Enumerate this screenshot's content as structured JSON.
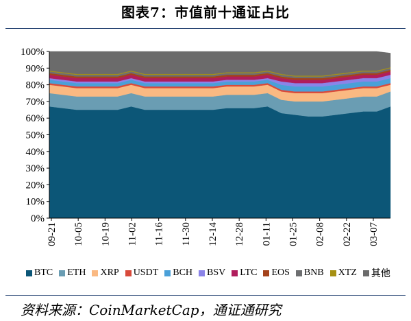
{
  "title": "图表7：市值前十通证占比",
  "source": "资料来源：CoinMarketCap，通证通研究",
  "chart_data": {
    "type": "area",
    "stacked": true,
    "title": "",
    "xlabel": "",
    "ylabel": "",
    "ylim": [
      0,
      100
    ],
    "y_ticks": [
      "0%",
      "10%",
      "20%",
      "30%",
      "40%",
      "50%",
      "60%",
      "70%",
      "80%",
      "90%",
      "100%"
    ],
    "x_tick_labels": [
      "09-21",
      "10-05",
      "10-19",
      "11-02",
      "11-16",
      "11-30",
      "12-14",
      "12-28",
      "01-11",
      "01-25",
      "02-08",
      "02-22",
      "03-07"
    ],
    "legend_position": "bottom",
    "grid": false,
    "x": [
      "09-21",
      "09-28",
      "10-05",
      "10-12",
      "10-19",
      "10-26",
      "11-02",
      "11-09",
      "11-16",
      "11-23",
      "11-30",
      "12-07",
      "12-14",
      "12-21",
      "12-28",
      "01-04",
      "01-11",
      "01-18",
      "01-25",
      "02-01",
      "02-08",
      "02-15",
      "02-22",
      "03-01",
      "03-07",
      "03-14"
    ],
    "series": [
      {
        "name": "BTC",
        "color": "#0c5677",
        "values": [
          67,
          66,
          65,
          65,
          65,
          65,
          67,
          65,
          65,
          65,
          65,
          65,
          65,
          66,
          66,
          66,
          67,
          63,
          62,
          61,
          61,
          62,
          63,
          64,
          64,
          67
        ]
      },
      {
        "name": "ETH",
        "color": "#6a9db3",
        "values": [
          8,
          8,
          8,
          8,
          8,
          8,
          8,
          8,
          8,
          8,
          8,
          8,
          8,
          8,
          8,
          8,
          8,
          8,
          8,
          9,
          9,
          9,
          9,
          9,
          9,
          9
        ]
      },
      {
        "name": "XRP",
        "color": "#fab982",
        "values": [
          5,
          5,
          5,
          5,
          5,
          5,
          5,
          5,
          5,
          5,
          5,
          5,
          5,
          5,
          5,
          5,
          5,
          5,
          5,
          5,
          5,
          5,
          5,
          5,
          5,
          4
        ]
      },
      {
        "name": "USDT",
        "color": "#d84a3b",
        "values": [
          1,
          1,
          1,
          1,
          1,
          1,
          1,
          1,
          1,
          1,
          1,
          1,
          1,
          1,
          1,
          1,
          1,
          1,
          1,
          1,
          1,
          1,
          1,
          1,
          1,
          1
        ]
      },
      {
        "name": "BCH",
        "color": "#4aa0d8",
        "values": [
          2,
          2,
          2,
          2,
          2,
          2,
          2,
          2,
          2,
          2,
          2,
          2,
          2,
          2,
          2,
          2,
          2,
          3,
          3,
          3,
          3,
          3,
          3,
          3,
          3,
          3
        ]
      },
      {
        "name": "BSV",
        "color": "#8b84e8",
        "values": [
          1,
          1,
          1,
          1,
          1,
          1,
          1,
          1,
          1,
          1,
          1,
          1,
          1,
          1,
          1,
          1,
          1,
          2,
          2,
          2,
          2,
          2,
          2,
          2,
          2,
          2
        ]
      },
      {
        "name": "LTC",
        "color": "#b01d5c",
        "values": [
          2,
          2,
          2,
          2,
          2,
          2,
          2,
          2,
          2,
          2,
          2,
          2,
          2,
          2,
          2,
          2,
          2,
          2,
          2,
          2,
          2,
          2,
          2,
          2,
          2,
          2
        ]
      },
      {
        "name": "EOS",
        "color": "#a4421b",
        "values": [
          1,
          1,
          1,
          1,
          1,
          1,
          1,
          1,
          1,
          1,
          1,
          1,
          1,
          1,
          1,
          1,
          1,
          1,
          1,
          1,
          1,
          1,
          1,
          1,
          1,
          1
        ]
      },
      {
        "name": "BNB",
        "color": "#6d6e70",
        "values": [
          1,
          1,
          1,
          1,
          1,
          1,
          1,
          1,
          1,
          1,
          1,
          1,
          1,
          1,
          1,
          1,
          1,
          1,
          1,
          1,
          1,
          1,
          1,
          1,
          1,
          1
        ]
      },
      {
        "name": "XTZ",
        "color": "#a69013",
        "values": [
          0.5,
          0.5,
          0.5,
          0.5,
          0.5,
          0.5,
          0.5,
          0.5,
          0.5,
          0.5,
          0.5,
          0.5,
          0.5,
          0.5,
          0.5,
          0.5,
          0.5,
          0.5,
          0.5,
          0.5,
          0.5,
          0.5,
          0.5,
          0.5,
          0.5,
          0.5
        ]
      },
      {
        "name": "其他",
        "color": "#6b6b6b",
        "values": [
          11.5,
          12.5,
          13.5,
          13.5,
          13.5,
          13.5,
          11.5,
          13.5,
          13.5,
          13.5,
          13.5,
          13.5,
          13.5,
          12.5,
          12.5,
          12.5,
          11.5,
          13.5,
          14.5,
          14.5,
          14.5,
          13.5,
          12.5,
          11.5,
          11.5,
          8.5
        ]
      }
    ]
  }
}
